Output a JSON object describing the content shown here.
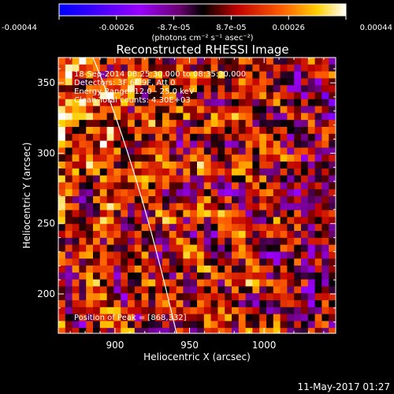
{
  "colorbar": {
    "ticks": [
      "-0.00044",
      "-0.00026",
      "-8.7e-05",
      "8.7e-05",
      "0.00026",
      "0.00044"
    ],
    "unit_label": "(photons cm⁻² s⁻¹ asec⁻²)"
  },
  "chart_data": {
    "type": "heatmap",
    "title": "Reconstructed RHESSI Image",
    "xlabel": "Heliocentric X (arcsec)",
    "ylabel": "Heliocentric Y (arcsec)",
    "xlim": [
      862,
      1048
    ],
    "ylim": [
      172,
      368
    ],
    "x_ticks": [
      900,
      950,
      1000
    ],
    "y_ticks": [
      200,
      250,
      300,
      350
    ],
    "color_range": [
      -0.00044,
      0.00044
    ],
    "annotations": [
      "18-Sep-2014 08:25:30.000 to 08:35:30.000",
      "Detectors: 3F 6F 9F, Att 0",
      "Energy Range: 12.0 - 25.0 keV",
      "Clean   Total counts: 4.30E+03"
    ],
    "peak_label": "Position of Peak = [868,332]",
    "peak": [
      868,
      332
    ]
  },
  "footer": {
    "timestamp": "11-May-2017 01:27"
  }
}
